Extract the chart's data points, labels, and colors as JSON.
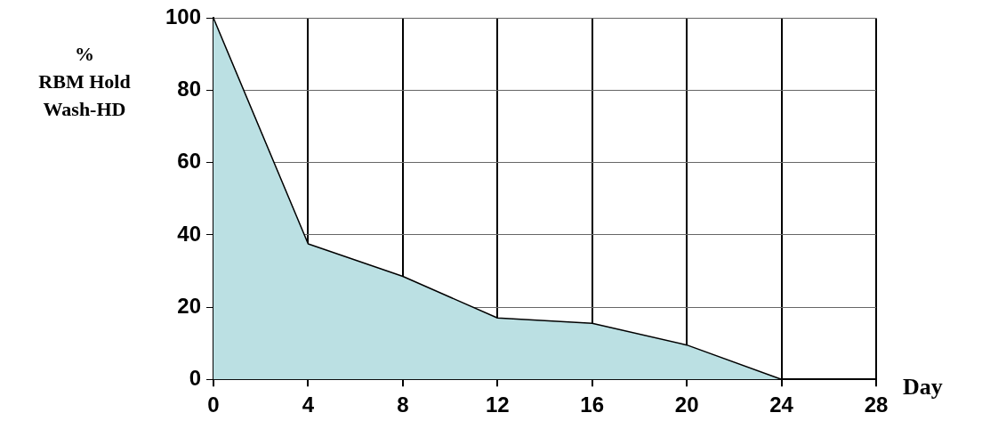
{
  "chart_data": {
    "type": "area",
    "ylabel": "%\nRBM Hold\nWash-HD",
    "xlabel": "Day",
    "x": [
      0,
      4,
      8,
      12,
      16,
      20,
      24
    ],
    "series": [
      {
        "color": "#bbe0e3",
        "values": [
          100,
          37.5,
          28.5,
          17,
          15.5,
          9.5,
          0
        ]
      }
    ],
    "xlim": [
      0,
      28
    ],
    "xticks": [
      0,
      4,
      8,
      12,
      16,
      20,
      24,
      28
    ],
    "ylim": [
      0,
      100
    ],
    "yticks": [
      0,
      20,
      40,
      60,
      80,
      100
    ],
    "grid": true,
    "legend": false,
    "marker": "none",
    "line_style": "solid"
  }
}
